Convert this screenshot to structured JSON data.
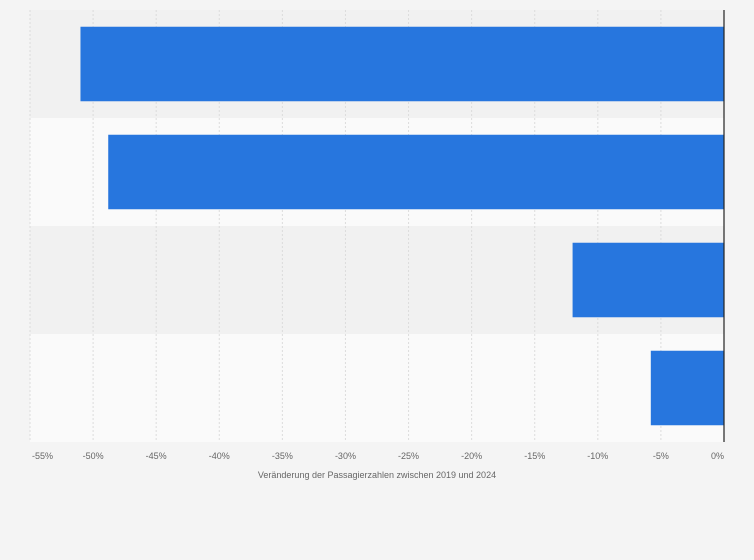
{
  "chart_data": {
    "type": "bar",
    "orientation": "horizontal",
    "categories": [
      "",
      "",
      "",
      ""
    ],
    "values": [
      -51,
      -48.8,
      -12,
      -5.8
    ],
    "xlabel": "Veränderung der Passagierzahlen zwischen 2019 und 2024",
    "ylabel": "",
    "xlim": [
      -55,
      0
    ],
    "x_ticks": [
      -55,
      -50,
      -45,
      -40,
      -35,
      -30,
      -25,
      -20,
      -15,
      -10,
      -5,
      0
    ],
    "x_tick_labels": [
      "-55%",
      "-50%",
      "-45%",
      "-40%",
      "-35%",
      "-30%",
      "-25%",
      "-20%",
      "-15%",
      "-10%",
      "-5%",
      "0%"
    ],
    "grid": true,
    "bar_color": "#2776de",
    "band_colors": [
      "#f1f1f1",
      "#fafafa"
    ]
  }
}
